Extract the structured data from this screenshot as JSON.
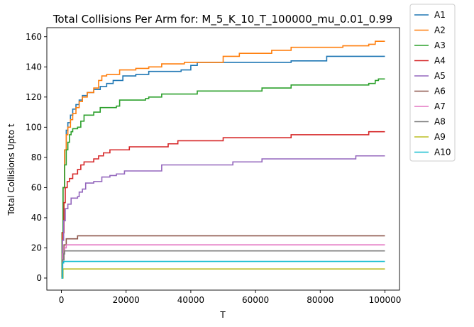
{
  "chart_data": {
    "type": "line",
    "title": "Total Collisions Per Arm for: M_5_K_10_T_100000_mu_0.01_0.99",
    "xlabel": "T",
    "ylabel": "Total Collisions Upto t",
    "xlim": [
      -4500,
      104500
    ],
    "ylim": [
      -8,
      166
    ],
    "xticks": [
      0,
      20000,
      40000,
      60000,
      80000,
      100000
    ],
    "xtick_labels": [
      "0",
      "20000",
      "40000",
      "60000",
      "80000",
      "100000"
    ],
    "yticks": [
      0,
      20,
      40,
      60,
      80,
      100,
      120,
      140,
      160
    ],
    "ytick_labels": [
      "0",
      "20",
      "40",
      "60",
      "80",
      "100",
      "120",
      "140",
      "160"
    ],
    "grid": false,
    "legend_position": "outside-top-right",
    "series": [
      {
        "name": "A1",
        "color": "#1f77b4",
        "points": [
          [
            0,
            0
          ],
          [
            200,
            30
          ],
          [
            500,
            60
          ],
          [
            1000,
            85
          ],
          [
            1500,
            98
          ],
          [
            2000,
            103
          ],
          [
            2800,
            108
          ],
          [
            3500,
            112
          ],
          [
            4500,
            115
          ],
          [
            5500,
            118
          ],
          [
            6500,
            121
          ],
          [
            8000,
            123
          ],
          [
            10000,
            125
          ],
          [
            12000,
            127
          ],
          [
            14000,
            129
          ],
          [
            16000,
            131
          ],
          [
            19000,
            134
          ],
          [
            23000,
            135
          ],
          [
            27000,
            137
          ],
          [
            37000,
            138
          ],
          [
            40000,
            141
          ],
          [
            42000,
            143
          ],
          [
            50000,
            143
          ],
          [
            71000,
            144
          ],
          [
            82000,
            147
          ],
          [
            100000,
            147
          ]
        ]
      },
      {
        "name": "A2",
        "color": "#ff7f0e",
        "points": [
          [
            0,
            0
          ],
          [
            200,
            30
          ],
          [
            500,
            60
          ],
          [
            1000,
            85
          ],
          [
            1500,
            95
          ],
          [
            2000,
            100
          ],
          [
            2800,
            105
          ],
          [
            3500,
            109
          ],
          [
            4500,
            113
          ],
          [
            5500,
            117
          ],
          [
            6500,
            120
          ],
          [
            8000,
            123
          ],
          [
            10000,
            126
          ],
          [
            11500,
            131
          ],
          [
            12500,
            134
          ],
          [
            14000,
            135
          ],
          [
            18000,
            138
          ],
          [
            23000,
            139
          ],
          [
            27000,
            140
          ],
          [
            31000,
            142
          ],
          [
            38000,
            143
          ],
          [
            50000,
            147
          ],
          [
            55000,
            149
          ],
          [
            65000,
            151
          ],
          [
            71000,
            153
          ],
          [
            87000,
            154
          ],
          [
            95000,
            155
          ],
          [
            97000,
            157
          ],
          [
            100000,
            157
          ]
        ]
      },
      {
        "name": "A3",
        "color": "#2ca02c",
        "points": [
          [
            0,
            0
          ],
          [
            200,
            30
          ],
          [
            500,
            60
          ],
          [
            1000,
            75
          ],
          [
            1500,
            85
          ],
          [
            2000,
            90
          ],
          [
            2500,
            95
          ],
          [
            3000,
            97
          ],
          [
            3500,
            99
          ],
          [
            5000,
            100
          ],
          [
            6000,
            104
          ],
          [
            7000,
            108
          ],
          [
            10000,
            110
          ],
          [
            12000,
            113
          ],
          [
            17000,
            114
          ],
          [
            18000,
            118
          ],
          [
            26000,
            119
          ],
          [
            27000,
            120
          ],
          [
            31000,
            122
          ],
          [
            42000,
            124
          ],
          [
            62000,
            126
          ],
          [
            71000,
            128
          ],
          [
            95000,
            129
          ],
          [
            97000,
            131
          ],
          [
            98000,
            132
          ],
          [
            100000,
            132
          ]
        ]
      },
      {
        "name": "A4",
        "color": "#d62728",
        "points": [
          [
            0,
            0
          ],
          [
            300,
            30
          ],
          [
            800,
            50
          ],
          [
            1200,
            60
          ],
          [
            1800,
            64
          ],
          [
            2500,
            66
          ],
          [
            3500,
            69
          ],
          [
            5000,
            72
          ],
          [
            6000,
            75
          ],
          [
            7000,
            77
          ],
          [
            10000,
            79
          ],
          [
            11500,
            81
          ],
          [
            13000,
            83
          ],
          [
            15000,
            85
          ],
          [
            21000,
            87
          ],
          [
            33000,
            89
          ],
          [
            36000,
            91
          ],
          [
            50000,
            93
          ],
          [
            71000,
            95
          ],
          [
            95000,
            97
          ],
          [
            100000,
            97
          ]
        ]
      },
      {
        "name": "A5",
        "color": "#9467bd",
        "points": [
          [
            0,
            0
          ],
          [
            300,
            25
          ],
          [
            700,
            38
          ],
          [
            1200,
            46
          ],
          [
            2000,
            49
          ],
          [
            3000,
            53
          ],
          [
            5000,
            54
          ],
          [
            5500,
            57
          ],
          [
            6500,
            59
          ],
          [
            7500,
            63
          ],
          [
            10000,
            64
          ],
          [
            12500,
            67
          ],
          [
            15000,
            68
          ],
          [
            17000,
            69
          ],
          [
            19500,
            71
          ],
          [
            31000,
            75
          ],
          [
            53000,
            77
          ],
          [
            62000,
            79
          ],
          [
            91000,
            81
          ],
          [
            100000,
            81
          ]
        ]
      },
      {
        "name": "A6",
        "color": "#8c564b",
        "points": [
          [
            0,
            0
          ],
          [
            300,
            12
          ],
          [
            800,
            22
          ],
          [
            1500,
            26
          ],
          [
            3000,
            26
          ],
          [
            5000,
            28
          ],
          [
            100000,
            28
          ]
        ]
      },
      {
        "name": "A7",
        "color": "#e377c2",
        "points": [
          [
            0,
            0
          ],
          [
            400,
            16
          ],
          [
            1000,
            20
          ],
          [
            1500,
            22
          ],
          [
            100000,
            22
          ]
        ]
      },
      {
        "name": "A8",
        "color": "#7f7f7f",
        "points": [
          [
            0,
            0
          ],
          [
            300,
            12
          ],
          [
            700,
            16
          ],
          [
            1000,
            18
          ],
          [
            100000,
            18
          ]
        ]
      },
      {
        "name": "A9",
        "color": "#bcbd22",
        "points": [
          [
            0,
            0
          ],
          [
            500,
            6
          ],
          [
            100000,
            6
          ]
        ]
      },
      {
        "name": "A10",
        "color": "#17becf",
        "points": [
          [
            0,
            0
          ],
          [
            400,
            10
          ],
          [
            700,
            11
          ],
          [
            100000,
            11
          ]
        ]
      }
    ]
  }
}
